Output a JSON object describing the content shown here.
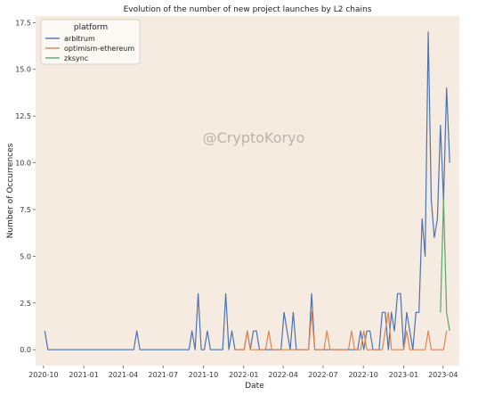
{
  "chart_data": {
    "type": "line",
    "title": "Evolution of the number of new project launches by L2 chains",
    "xlabel": "Date",
    "ylabel": "Number of Occurrences",
    "watermark": "@CryptoKoryo",
    "ylim": [
      -0.85,
      17.85
    ],
    "xlim": [
      "2020-09-13",
      "2023-05-08"
    ],
    "yticks": [
      "0.0",
      "2.5",
      "5.0",
      "7.5",
      "10.0",
      "12.5",
      "15.0",
      "17.5"
    ],
    "xticks": [
      "2020-10",
      "2021-01",
      "2021-04",
      "2021-07",
      "2021-10",
      "2022-01",
      "2022-04",
      "2022-07",
      "2022-10",
      "2023-01",
      "2023-04"
    ],
    "grid": false,
    "legend": {
      "title": "platform",
      "position": "top-left"
    },
    "background": "#f5ebe0",
    "series": [
      {
        "name": "arbitrum",
        "color": "#4c72b0",
        "points": [
          [
            "2020-10-04",
            1
          ],
          [
            "2020-10-11",
            0
          ],
          [
            "2021-04-25",
            0
          ],
          [
            "2021-05-02",
            1
          ],
          [
            "2021-05-09",
            0
          ],
          [
            "2021-08-29",
            0
          ],
          [
            "2021-09-05",
            1
          ],
          [
            "2021-09-12",
            0
          ],
          [
            "2021-09-19",
            3
          ],
          [
            "2021-09-26",
            0
          ],
          [
            "2021-10-03",
            0
          ],
          [
            "2021-10-10",
            1
          ],
          [
            "2021-10-17",
            0
          ],
          [
            "2021-11-14",
            0
          ],
          [
            "2021-11-21",
            3
          ],
          [
            "2021-11-28",
            0
          ],
          [
            "2021-12-05",
            1
          ],
          [
            "2021-12-12",
            0
          ],
          [
            "2022-01-02",
            0
          ],
          [
            "2022-01-09",
            1
          ],
          [
            "2022-01-16",
            0
          ],
          [
            "2022-01-23",
            1
          ],
          [
            "2022-01-30",
            1
          ],
          [
            "2022-02-06",
            0
          ],
          [
            "2022-03-27",
            0
          ],
          [
            "2022-04-03",
            2
          ],
          [
            "2022-04-10",
            1
          ],
          [
            "2022-04-17",
            0
          ],
          [
            "2022-04-24",
            2
          ],
          [
            "2022-05-01",
            0
          ],
          [
            "2022-05-29",
            0
          ],
          [
            "2022-06-05",
            3
          ],
          [
            "2022-06-12",
            0
          ],
          [
            "2022-09-18",
            0
          ],
          [
            "2022-09-25",
            1
          ],
          [
            "2022-10-02",
            0
          ],
          [
            "2022-10-09",
            1
          ],
          [
            "2022-10-16",
            1
          ],
          [
            "2022-10-23",
            0
          ],
          [
            "2022-11-06",
            0
          ],
          [
            "2022-11-13",
            2
          ],
          [
            "2022-11-20",
            2
          ],
          [
            "2022-11-27",
            0
          ],
          [
            "2022-12-04",
            2
          ],
          [
            "2022-12-11",
            1
          ],
          [
            "2022-12-18",
            3
          ],
          [
            "2022-12-25",
            3
          ],
          [
            "2023-01-01",
            0
          ],
          [
            "2023-01-08",
            2
          ],
          [
            "2023-01-15",
            1
          ],
          [
            "2023-01-22",
            0
          ],
          [
            "2023-01-29",
            2
          ],
          [
            "2023-02-05",
            2
          ],
          [
            "2023-02-12",
            7
          ],
          [
            "2023-02-19",
            5
          ],
          [
            "2023-02-26",
            17
          ],
          [
            "2023-03-05",
            8
          ],
          [
            "2023-03-12",
            6
          ],
          [
            "2023-03-19",
            7
          ],
          [
            "2023-03-26",
            12
          ],
          [
            "2023-04-02",
            8
          ],
          [
            "2023-04-09",
            14
          ],
          [
            "2023-04-16",
            10
          ]
        ]
      },
      {
        "name": "optimism-ethereum",
        "color": "#dd8452",
        "points": [
          [
            "2021-12-12",
            0
          ],
          [
            "2022-01-02",
            0
          ],
          [
            "2022-01-09",
            1
          ],
          [
            "2022-01-16",
            0
          ],
          [
            "2022-02-20",
            0
          ],
          [
            "2022-02-27",
            1
          ],
          [
            "2022-03-06",
            0
          ],
          [
            "2022-05-29",
            0
          ],
          [
            "2022-06-05",
            2
          ],
          [
            "2022-06-12",
            0
          ],
          [
            "2022-07-03",
            0
          ],
          [
            "2022-07-10",
            1
          ],
          [
            "2022-07-17",
            0
          ],
          [
            "2022-08-28",
            0
          ],
          [
            "2022-09-04",
            1
          ],
          [
            "2022-09-11",
            0
          ],
          [
            "2022-09-25",
            0
          ],
          [
            "2022-10-02",
            1
          ],
          [
            "2022-10-09",
            0
          ],
          [
            "2022-11-13",
            0
          ],
          [
            "2022-11-20",
            1
          ],
          [
            "2022-11-27",
            2
          ],
          [
            "2022-12-04",
            0
          ],
          [
            "2023-01-01",
            0
          ],
          [
            "2023-01-08",
            1
          ],
          [
            "2023-01-15",
            0
          ],
          [
            "2023-02-19",
            0
          ],
          [
            "2023-02-26",
            1
          ],
          [
            "2023-03-05",
            0
          ],
          [
            "2023-04-02",
            0
          ],
          [
            "2023-04-09",
            1
          ]
        ]
      },
      {
        "name": "zksync",
        "color": "#55a868",
        "points": [
          [
            "2023-03-26",
            2
          ],
          [
            "2023-04-02",
            8
          ],
          [
            "2023-04-09",
            2
          ],
          [
            "2023-04-16",
            1
          ]
        ]
      }
    ]
  }
}
